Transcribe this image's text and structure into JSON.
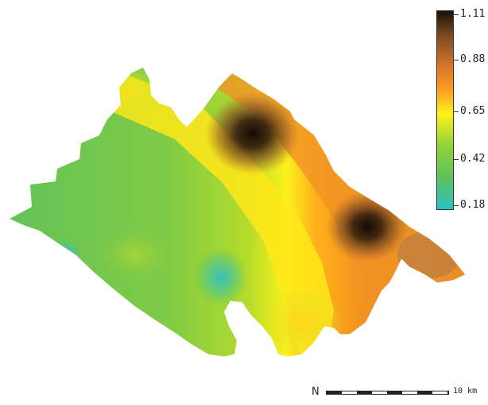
{
  "legend": {
    "labels": [
      "1.11",
      "0.88",
      "0.65",
      "0.42",
      "0.18"
    ],
    "colors": {
      "max": "#1a0f08",
      "high": "#7a4a23",
      "upper": "#d6762b",
      "mid_high": "#ffa020",
      "mid": "#fff21c",
      "mid_low": "#8fd23c",
      "low": "#5fc25a",
      "min": "#2bc0c4"
    }
  },
  "scale_bar": {
    "north_symbol": "N",
    "label": "10 km"
  }
}
